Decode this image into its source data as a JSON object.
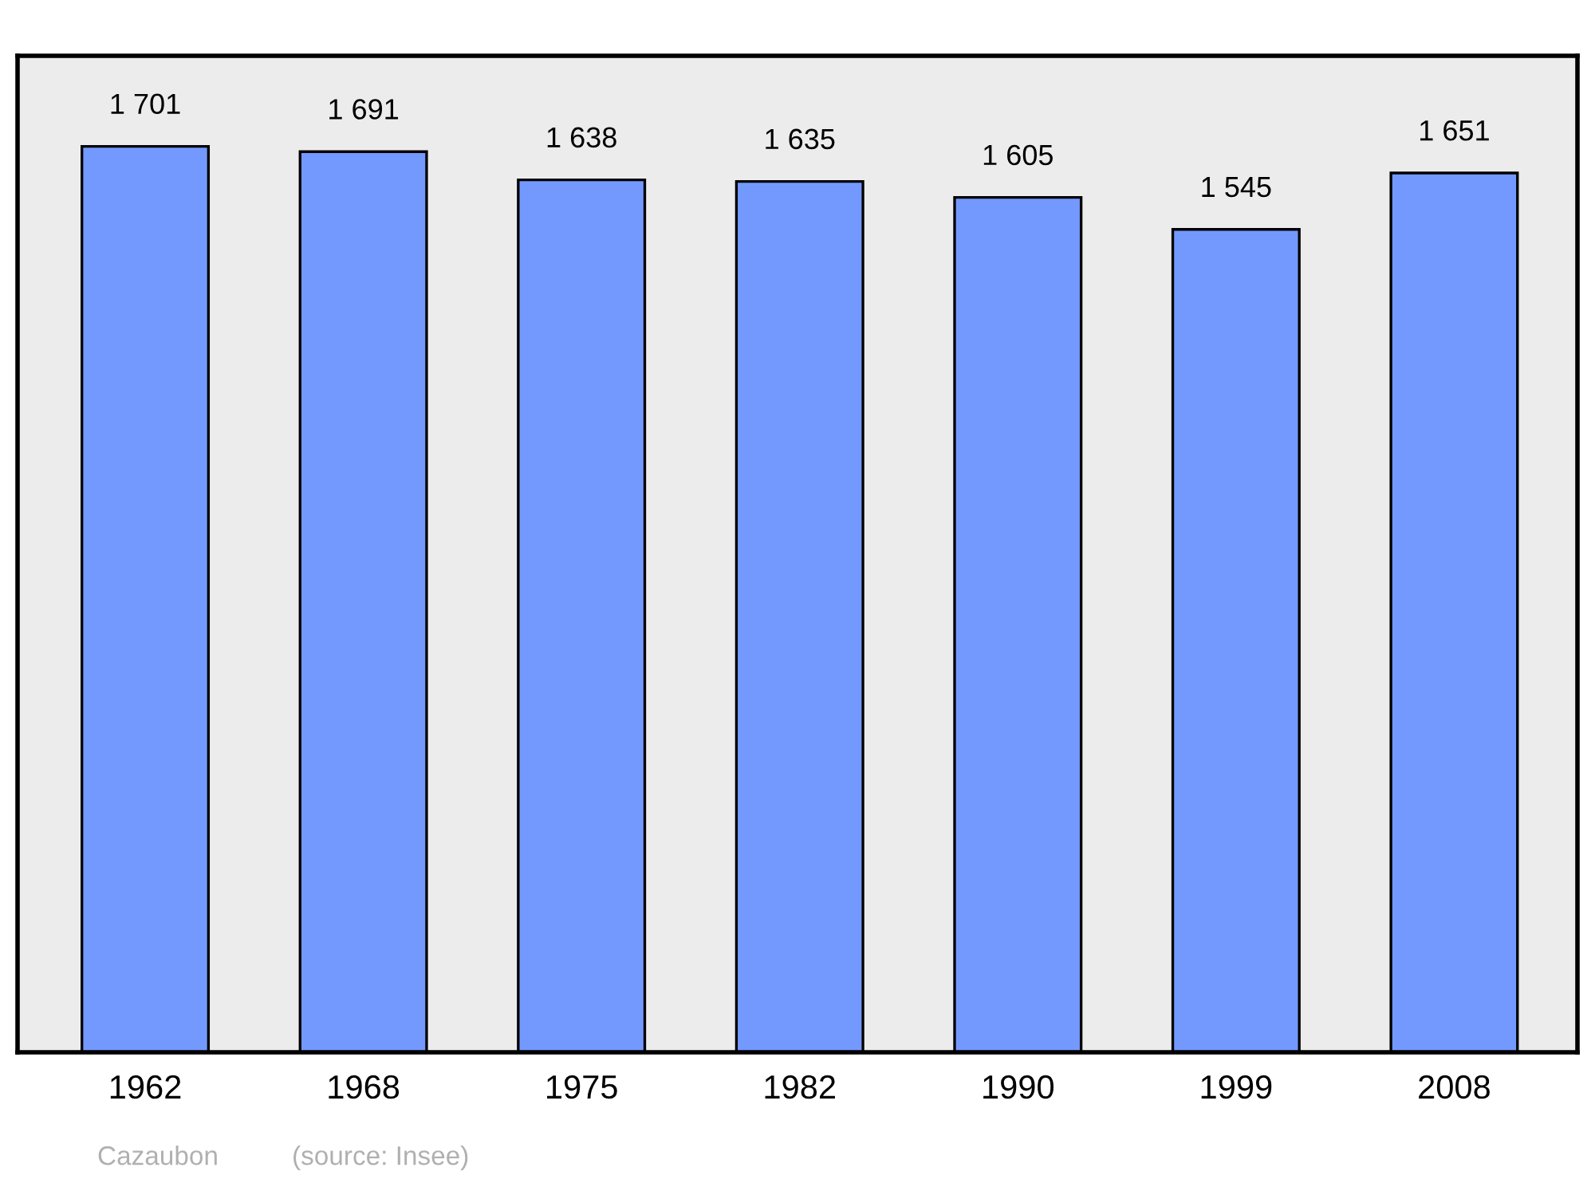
{
  "chart_data": {
    "type": "bar",
    "categories": [
      "1962",
      "1968",
      "1975",
      "1982",
      "1990",
      "1999",
      "2008"
    ],
    "values": [
      1701,
      1691,
      1638,
      1635,
      1605,
      1545,
      1651
    ],
    "value_labels": [
      "1 701",
      "1 691",
      "1 638",
      "1 635",
      "1 605",
      "1 545",
      "1 651"
    ],
    "color": "#7399ff",
    "grid": false,
    "legend": false,
    "tick_labels": "x",
    "annotations": [
      "Cazaubon",
      "(source: Insee)"
    ]
  }
}
